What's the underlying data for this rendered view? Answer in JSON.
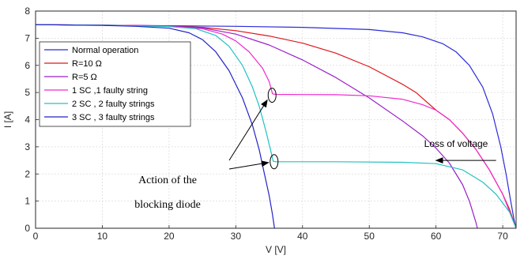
{
  "chart_data": {
    "type": "line",
    "xlabel": "V [V]",
    "ylabel": "I [A]",
    "xlim": [
      0,
      72
    ],
    "ylim": [
      0,
      8
    ],
    "xticks": [
      0,
      10,
      20,
      30,
      40,
      50,
      60,
      70
    ],
    "yticks": [
      0,
      1,
      2,
      3,
      4,
      5,
      6,
      7,
      8
    ],
    "grid": true,
    "legend_position": "top-left",
    "series": [
      {
        "name": "Normal operation",
        "color": "#2b2bd9",
        "points": [
          [
            0,
            7.5
          ],
          [
            10,
            7.48
          ],
          [
            20,
            7.46
          ],
          [
            30,
            7.44
          ],
          [
            40,
            7.4
          ],
          [
            50,
            7.32
          ],
          [
            55,
            7.2
          ],
          [
            58,
            7.05
          ],
          [
            61,
            6.8
          ],
          [
            63,
            6.5
          ],
          [
            65,
            6.0
          ],
          [
            67,
            5.2
          ],
          [
            68.5,
            4.2
          ],
          [
            69.7,
            3.0
          ],
          [
            70.5,
            2.0
          ],
          [
            71.2,
            1.0
          ],
          [
            71.7,
            0.3
          ],
          [
            72,
            0
          ]
        ]
      },
      {
        "name": "R=10 Ω",
        "color": "#e0161a",
        "points": [
          [
            0,
            7.5
          ],
          [
            10,
            7.48
          ],
          [
            20,
            7.45
          ],
          [
            25,
            7.4
          ],
          [
            30,
            7.28
          ],
          [
            35,
            7.08
          ],
          [
            40,
            6.82
          ],
          [
            45,
            6.45
          ],
          [
            50,
            5.95
          ],
          [
            55,
            5.3
          ],
          [
            57,
            5.0
          ],
          [
            60,
            4.35
          ],
          [
            62,
            4.0
          ],
          [
            64,
            3.5
          ],
          [
            66,
            2.9
          ],
          [
            68,
            2.15
          ],
          [
            70,
            1.25
          ],
          [
            71,
            0.7
          ],
          [
            72,
            0
          ]
        ]
      },
      {
        "name": "R=5 Ω",
        "color": "#9a1fc9",
        "points": [
          [
            0,
            7.5
          ],
          [
            10,
            7.48
          ],
          [
            20,
            7.45
          ],
          [
            25,
            7.38
          ],
          [
            30,
            7.15
          ],
          [
            35,
            6.75
          ],
          [
            40,
            6.2
          ],
          [
            45,
            5.55
          ],
          [
            50,
            4.8
          ],
          [
            55,
            3.95
          ],
          [
            58,
            3.4
          ],
          [
            60,
            2.95
          ],
          [
            62,
            2.4
          ],
          [
            64,
            1.6
          ],
          [
            65,
            1.0
          ],
          [
            66,
            0.2
          ],
          [
            66.2,
            0
          ]
        ]
      },
      {
        "name": "1 SC ,1 faulty string",
        "color": "#ee2ad0",
        "points": [
          [
            0,
            7.5
          ],
          [
            10,
            7.48
          ],
          [
            20,
            7.44
          ],
          [
            25,
            7.35
          ],
          [
            28,
            7.15
          ],
          [
            30,
            6.9
          ],
          [
            32,
            6.5
          ],
          [
            34,
            5.9
          ],
          [
            35,
            5.4
          ],
          [
            35.5,
            4.95
          ],
          [
            36,
            4.93
          ],
          [
            45,
            4.92
          ],
          [
            50,
            4.88
          ],
          [
            55,
            4.75
          ],
          [
            58,
            4.55
          ],
          [
            60,
            4.35
          ],
          [
            62,
            4.0
          ],
          [
            64,
            3.5
          ],
          [
            66,
            2.9
          ],
          [
            68,
            2.15
          ],
          [
            70,
            1.25
          ],
          [
            72,
            0
          ]
        ]
      },
      {
        "name": "2 SC , 2 faulty strings",
        "color": "#22c2c2",
        "points": [
          [
            0,
            7.5
          ],
          [
            10,
            7.48
          ],
          [
            20,
            7.43
          ],
          [
            24,
            7.35
          ],
          [
            27,
            7.1
          ],
          [
            29,
            6.7
          ],
          [
            31,
            6.0
          ],
          [
            32.5,
            5.2
          ],
          [
            33.5,
            4.5
          ],
          [
            34.5,
            3.6
          ],
          [
            35.2,
            2.9
          ],
          [
            35.6,
            2.47
          ],
          [
            36,
            2.45
          ],
          [
            45,
            2.45
          ],
          [
            55,
            2.43
          ],
          [
            60,
            2.38
          ],
          [
            64,
            2.15
          ],
          [
            67,
            1.7
          ],
          [
            69,
            1.25
          ],
          [
            71,
            0.6
          ],
          [
            72,
            0
          ]
        ]
      },
      {
        "name": "3 SC , 3 faulty strings",
        "color": "#2323c8",
        "points": [
          [
            0,
            7.5
          ],
          [
            10,
            7.47
          ],
          [
            15,
            7.44
          ],
          [
            20,
            7.37
          ],
          [
            23,
            7.2
          ],
          [
            25,
            6.95
          ],
          [
            27,
            6.5
          ],
          [
            29,
            5.8
          ],
          [
            31,
            4.8
          ],
          [
            32.5,
            3.8
          ],
          [
            33.5,
            2.9
          ],
          [
            34.3,
            2.0
          ],
          [
            35,
            1.2
          ],
          [
            35.5,
            0.5
          ],
          [
            35.8,
            0
          ]
        ]
      }
    ],
    "annotations": [
      {
        "text": "Loss of voltage",
        "arrow_from": [
          69,
          2.5
        ],
        "arrow_to": [
          60,
          2.5
        ]
      },
      {
        "text_lines": [
          "Action of the",
          "blocking diode"
        ],
        "arrow_targets": [
          [
            35.2,
            4.9
          ],
          [
            34.2,
            2.45
          ]
        ]
      }
    ]
  }
}
